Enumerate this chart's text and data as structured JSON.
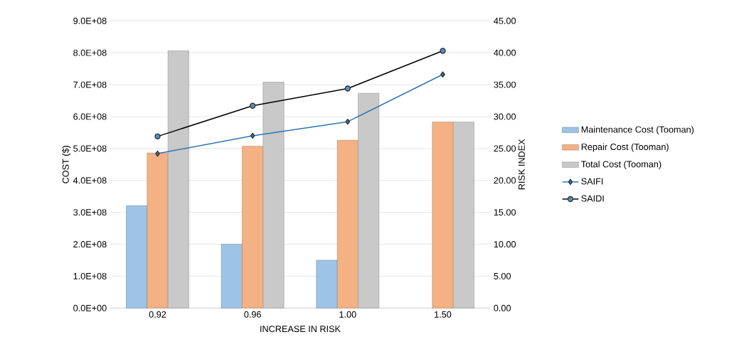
{
  "chart_data": {
    "type": "bar",
    "xlabel": "INCREASE IN RISK",
    "ylabel": "COST ($)",
    "y2label": "RISK INDEX",
    "categories": [
      "0.92",
      "0.96",
      "1.00",
      "1.50"
    ],
    "series": [
      {
        "name": "Maintenance Cost (Tooman)",
        "color": "#9dc3e6",
        "values": [
          321000000,
          200000000,
          150000000,
          null
        ]
      },
      {
        "name": "Repair Cost (Tooman)",
        "color": "#f4b183",
        "values": [
          486000000,
          507000000,
          526000000,
          583000000
        ]
      },
      {
        "name": "Total Cost (Tooman)",
        "color": "#c9c9c9",
        "values": [
          806000000,
          708000000,
          673000000,
          583000000
        ]
      },
      {
        "name": "SAIFI",
        "type": "line",
        "axis": "y2",
        "marker": "diamond",
        "color": "#2e75b6",
        "values": [
          24.2,
          27.0,
          29.2,
          36.6
        ]
      },
      {
        "name": "SAIDI",
        "type": "line",
        "axis": "y2",
        "marker": "circle",
        "color": "#000000",
        "values": [
          26.9,
          31.7,
          34.4,
          40.3
        ]
      }
    ],
    "ylim": [
      0,
      900000000
    ],
    "yticks": [
      {
        "value": 0,
        "label": "0.0E+00"
      },
      {
        "value": 100000000,
        "label": "1.0E+08"
      },
      {
        "value": 200000000,
        "label": "2.0E+08"
      },
      {
        "value": 300000000,
        "label": "3.0E+08"
      },
      {
        "value": 400000000,
        "label": "4.0E+08"
      },
      {
        "value": 500000000,
        "label": "5.0E+08"
      },
      {
        "value": 600000000,
        "label": "6.0E+08"
      },
      {
        "value": 700000000,
        "label": "7.0E+08"
      },
      {
        "value": 800000000,
        "label": "8.0E+08"
      },
      {
        "value": 900000000,
        "label": "9.0E+08"
      }
    ],
    "y2lim": [
      0,
      45
    ],
    "y2ticks": [
      {
        "value": 0,
        "label": "0.00"
      },
      {
        "value": 5,
        "label": "5.00"
      },
      {
        "value": 10,
        "label": "10.00"
      },
      {
        "value": 15,
        "label": "15.00"
      },
      {
        "value": 20,
        "label": "20.00"
      },
      {
        "value": 25,
        "label": "25.00"
      },
      {
        "value": 30,
        "label": "30.00"
      },
      {
        "value": 35,
        "label": "35.00"
      },
      {
        "value": 40,
        "label": "40.00"
      },
      {
        "value": 45,
        "label": "45.00"
      }
    ],
    "grid": "y",
    "legend": "right"
  }
}
